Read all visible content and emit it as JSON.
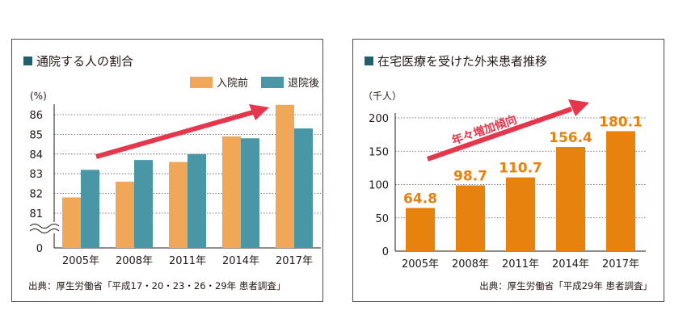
{
  "chart_data": [
    {
      "type": "bar",
      "title": "通院する人の割合",
      "ylabel": "(%)",
      "categories": [
        "2005年",
        "2008年",
        "2011年",
        "2014年",
        "2017年"
      ],
      "series": [
        {
          "name": "入院前",
          "values": [
            81.8,
            82.6,
            83.6,
            84.9,
            86.5
          ]
        },
        {
          "name": "退院後",
          "values": [
            83.2,
            83.7,
            84.0,
            84.8,
            85.3
          ]
        }
      ],
      "ylim": [
        80,
        86.6
      ],
      "y_axis_broken": true,
      "yticks": [
        "0",
        "81",
        "82",
        "83",
        "84",
        "85",
        "86"
      ],
      "grid": true,
      "legend": "top-right",
      "source": "出典：厚生労働省「平成17・20・23・26・29年 患者調査」",
      "colors": {
        "入院前": "#f0a858",
        "退院後": "#4896a6",
        "arrow": "#e5364c",
        "title_marker": "#1f5f6e"
      }
    },
    {
      "type": "bar",
      "title": "在宅医療を受けた外来患者推移",
      "ylabel": "（千人）",
      "categories": [
        "2005年",
        "2008年",
        "2011年",
        "2014年",
        "2017年"
      ],
      "values": [
        64.8,
        98.7,
        110.7,
        156.4,
        180.1
      ],
      "value_labels": [
        "64.8",
        "98.7",
        "110.7",
        "156.4",
        "180.1"
      ],
      "ylim": [
        0,
        200
      ],
      "yticks": [
        "0",
        "50",
        "100",
        "150",
        "200"
      ],
      "grid": true,
      "annotation": "年々増加傾向",
      "source": "出典：厚生労働省「平成29年 患者調査」",
      "colors": {
        "bar": "#e8820e",
        "value_label": "#e8820e",
        "arrow": "#e5364c",
        "title_marker": "#1f5f6e"
      }
    }
  ]
}
